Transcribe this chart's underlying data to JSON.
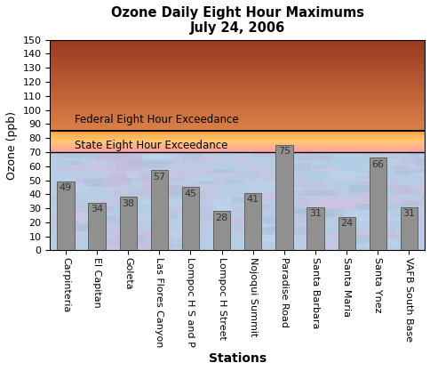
{
  "title_line1": "Ozone Daily Eight Hour Maximums",
  "title_line2": "July 24, 2006",
  "xlabel": "Stations",
  "ylabel": "Ozone (ppb)",
  "stations": [
    "Carpinteria",
    "El Capitan",
    "Goleta",
    "Las Flores Canyon",
    "Lompoc H S and P",
    "Lompoc H Street",
    "Nojoqui Summit",
    "Paradise Road",
    "Santa Barbara",
    "Santa Maria",
    "Santa Ynez",
    "VAFB South Base"
  ],
  "values": [
    49,
    34,
    38,
    57,
    45,
    28,
    41,
    75,
    31,
    24,
    66,
    31
  ],
  "bar_color": "#909090",
  "bar_edge_color": "#606060",
  "ylim": [
    0,
    150
  ],
  "yticks": [
    0,
    10,
    20,
    30,
    40,
    50,
    60,
    70,
    80,
    90,
    100,
    110,
    120,
    130,
    140,
    150
  ],
  "federal_line": 85,
  "state_line": 70,
  "federal_label": "Federal Eight Hour Exceedance",
  "state_label": "State Eight Hour Exceedance",
  "value_fontsize": 8,
  "value_color": "#333333"
}
